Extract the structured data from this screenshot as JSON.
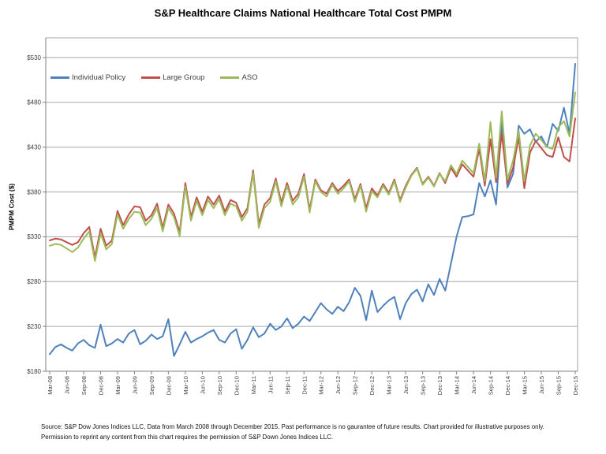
{
  "footer": {
    "line1": "Source: S&P Dow Jones Indices LLC, Data from March 2008 through December 2015. Past performance is no gaurantee of future results. Chart provided for illustrative purposes only.",
    "line2": "Permission to reprint any content from this chart requires the permission of S&P Down Jones Indices LLC."
  },
  "chart_data": {
    "type": "line",
    "title": "S&P Healthcare Claims National Healthcare Total Cost PMPM",
    "xlabel": "",
    "ylabel": "PMPM Cost ($)",
    "ylim": [
      180,
      530
    ],
    "ytick_step": 50,
    "ytick_prefix": "$",
    "yticks": [
      180,
      230,
      280,
      330,
      380,
      430,
      480,
      530
    ],
    "grid": "horizontal",
    "legend_position": "top-left-inside",
    "x_label_every": 3,
    "x_labels": [
      "Mar-08",
      "Jun-08",
      "Sep-08",
      "Dec-08",
      "Mar-09",
      "Jun-09",
      "Sep-09",
      "Dec-09",
      "Mar-10",
      "Jun-10",
      "Sep-10",
      "Dec-10",
      "Mar-11",
      "Jun-11",
      "Sep-11",
      "Dec-11",
      "Mar-12",
      "Jun-12",
      "Sep-12",
      "Dec-12",
      "Mar-13",
      "Jun-13",
      "Sep-13",
      "Dec-13",
      "Mar-14",
      "Jun-14",
      "Sep-14",
      "Dec-14",
      "Mar-15",
      "Jun-15",
      "Sep-15",
      "Dec-15"
    ],
    "x_frequency": "monthly (values are monthly Mar-08 through Dec-15; labels shown quarterly)",
    "values_note": "values in $ PMPM, estimated from gridlines",
    "series": [
      {
        "name": "Individual Policy",
        "color": "#4F81BD",
        "values": [
          199,
          207,
          210,
          206,
          203,
          211,
          215,
          209,
          206,
          232,
          208,
          211,
          216,
          212,
          222,
          226,
          210,
          214,
          221,
          216,
          219,
          238,
          197,
          210,
          224,
          212,
          216,
          219,
          223,
          226,
          215,
          212,
          222,
          227,
          205,
          215,
          229,
          218,
          222,
          233,
          226,
          230,
          239,
          228,
          233,
          241,
          236,
          246,
          256,
          249,
          244,
          252,
          247,
          257,
          273,
          264,
          237,
          270,
          246,
          253,
          259,
          263,
          238,
          256,
          266,
          271,
          258,
          277,
          265,
          283,
          270,
          300,
          330,
          352,
          353,
          355,
          390,
          375,
          393,
          366,
          458,
          385,
          400,
          454,
          445,
          450,
          436,
          442,
          430,
          456,
          448,
          474,
          445,
          523
        ]
      },
      {
        "name": "Large Group",
        "color": "#C0504D",
        "values": [
          326,
          328,
          327,
          324,
          321,
          324,
          334,
          341,
          307,
          339,
          320,
          326,
          359,
          343,
          355,
          364,
          363,
          348,
          354,
          367,
          340,
          366,
          356,
          335,
          390,
          352,
          374,
          358,
          375,
          366,
          376,
          358,
          371,
          368,
          352,
          362,
          404,
          344,
          366,
          373,
          395,
          368,
          390,
          370,
          378,
          400,
          360,
          394,
          382,
          378,
          390,
          381,
          387,
          394,
          372,
          389,
          362,
          384,
          376,
          389,
          379,
          394,
          371,
          387,
          399,
          407,
          389,
          397,
          387,
          401,
          390,
          407,
          397,
          411,
          404,
          397,
          428,
          387,
          439,
          391,
          445,
          389,
          407,
          441,
          384,
          424,
          437,
          429,
          421,
          419,
          441,
          419,
          414,
          462
        ]
      },
      {
        "name": "ASO",
        "color": "#9BBB59",
        "values": [
          320,
          322,
          321,
          317,
          313,
          318,
          328,
          336,
          303,
          334,
          316,
          322,
          355,
          339,
          350,
          358,
          357,
          343,
          350,
          362,
          336,
          362,
          352,
          331,
          386,
          348,
          370,
          354,
          371,
          362,
          372,
          354,
          367,
          364,
          348,
          358,
          401,
          340,
          362,
          369,
          392,
          364,
          387,
          366,
          374,
          397,
          357,
          392,
          380,
          375,
          388,
          378,
          384,
          392,
          369,
          387,
          358,
          381,
          374,
          387,
          377,
          392,
          369,
          385,
          398,
          406,
          388,
          396,
          386,
          400,
          392,
          410,
          400,
          415,
          408,
          401,
          434,
          392,
          458,
          396,
          470,
          394,
          415,
          448,
          392,
          432,
          445,
          438,
          430,
          428,
          452,
          459,
          442,
          491
        ]
      }
    ],
    "colors": {
      "grid": "#A6A6A6",
      "axis": "#808080",
      "tick_text": "#3f3f3f"
    }
  }
}
